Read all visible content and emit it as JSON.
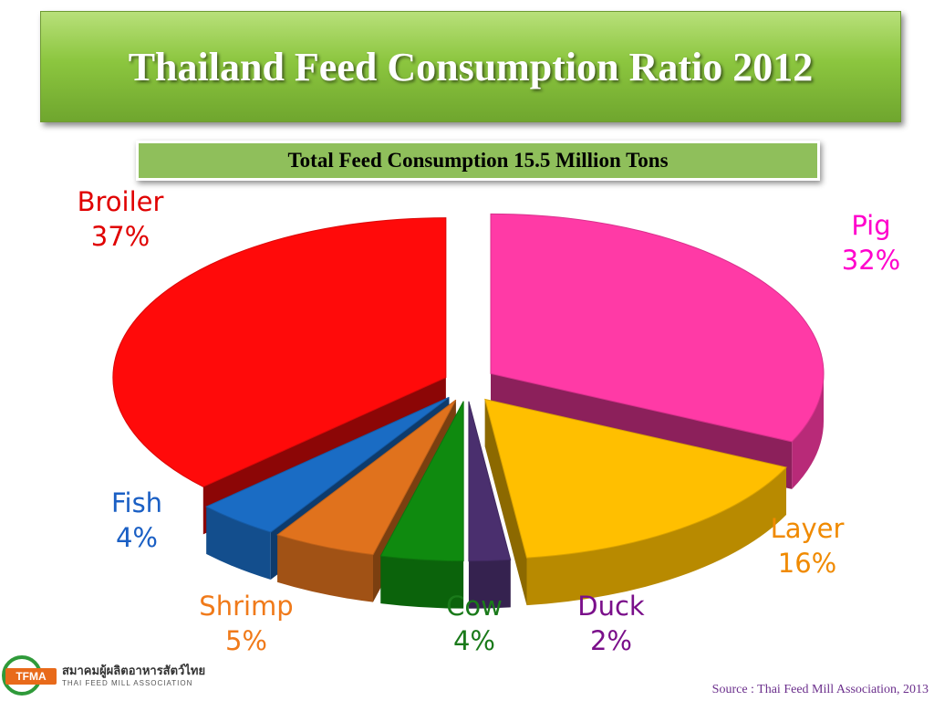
{
  "title": "Thailand Feed Consumption Ratio 2012",
  "subtitle": "Total Feed Consumption 15.5 Million Tons",
  "source": "Source : Thai Feed Mill Association, 2013",
  "logo": {
    "mark": "TFMA",
    "thai_name": "สมาคมผู้ผลิตอาหารสัตว์ไทย",
    "english_name": "THAI FEED MILL ASSOCIATION"
  },
  "chart_data": {
    "type": "pie",
    "title": "Thailand Feed Consumption Ratio 2012",
    "subtitle": "Total Feed Consumption 15.5 Million Tons",
    "unit": "%",
    "exploded": true,
    "style": "3d",
    "categories": [
      "Broiler",
      "Pig",
      "Layer",
      "Duck",
      "Cow",
      "Shrimp",
      "Fish"
    ],
    "values": [
      37,
      32,
      16,
      2,
      4,
      5,
      4
    ],
    "labels": {
      "broiler": {
        "name": "Broiler",
        "pct": "37%"
      },
      "pig": {
        "name": "Pig",
        "pct": "32%"
      },
      "layer": {
        "name": "Layer",
        "pct": "16%"
      },
      "duck": {
        "name": "Duck",
        "pct": "2%"
      },
      "cow": {
        "name": "Cow",
        "pct": "4%"
      },
      "shrimp": {
        "name": "Shrimp",
        "pct": "5%"
      },
      "fish": {
        "name": "Fish",
        "pct": "4%"
      }
    },
    "colors": {
      "broiler": "#ff0a0a",
      "pig": "#ff3aa6",
      "layer": "#ffbf00",
      "duck": "#4a2f6e",
      "cow": "#0f8a0f",
      "shrimp": "#e0721d",
      "fish": "#1a6cc4"
    },
    "label_colors": {
      "broiler": "#e00000",
      "pig": "#ff00cc",
      "layer": "#f08a00",
      "duck": "#7a0f8a",
      "cow": "#1a7a1a",
      "shrimp": "#f07a1a",
      "fish": "#1a5fc4"
    }
  }
}
